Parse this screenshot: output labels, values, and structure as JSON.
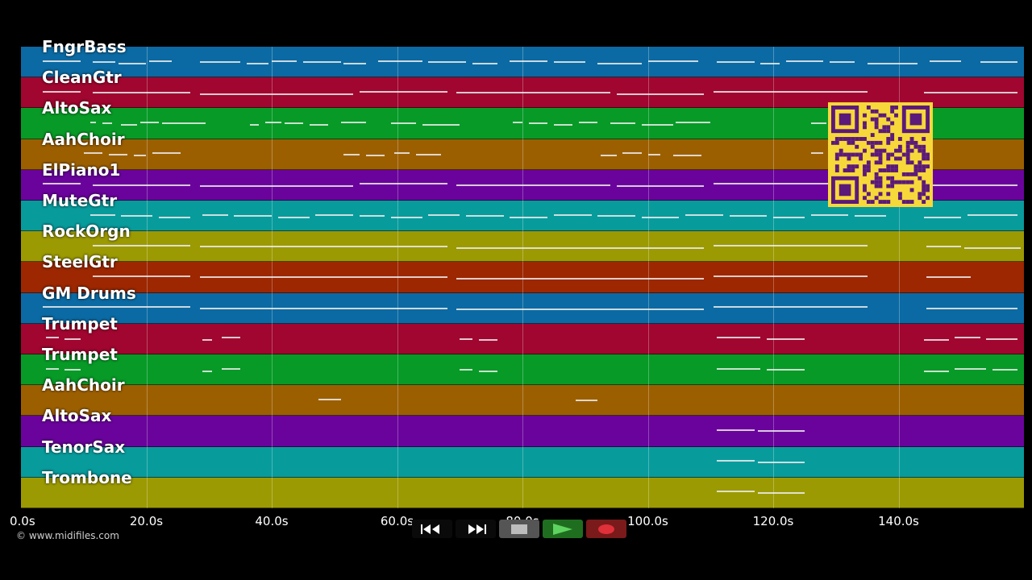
{
  "tracks": [
    {
      "name": "FngrBass",
      "color": "#0b6aa3"
    },
    {
      "name": "CleanGtr",
      "color": "#a0062f"
    },
    {
      "name": "AltoSax",
      "color": "#079a27"
    },
    {
      "name": "AahChoir",
      "color": "#9c5f00"
    },
    {
      "name": "ElPiano1",
      "color": "#6a039c"
    },
    {
      "name": "MuteGtr",
      "color": "#089b9c"
    },
    {
      "name": "RockOrgn",
      "color": "#9c9a02"
    },
    {
      "name": "SteelGtr",
      "color": "#9c2700"
    },
    {
      "name": "GM Drums",
      "color": "#0b6aa3"
    },
    {
      "name": "Trumpet",
      "color": "#a0062f"
    },
    {
      "name": "Trumpet",
      "color": "#079a27"
    },
    {
      "name": "AahChoir",
      "color": "#9c5f00"
    },
    {
      "name": "AltoSax",
      "color": "#6a039c"
    },
    {
      "name": "TenorSax",
      "color": "#089b9c"
    },
    {
      "name": "Trombone",
      "color": "#9c9a02"
    }
  ],
  "timeline": {
    "max_seconds": 160,
    "ticks": [
      {
        "value": 0,
        "label": "0.0s"
      },
      {
        "value": 20,
        "label": "20.0s"
      },
      {
        "value": 40,
        "label": "40.0s"
      },
      {
        "value": 60,
        "label": "60.0s"
      },
      {
        "value": 80,
        "label": "80.0s"
      },
      {
        "value": 100,
        "label": "100.0s"
      },
      {
        "value": 120,
        "label": "120.0s"
      },
      {
        "value": 140,
        "label": "140.0s"
      }
    ]
  },
  "note_regions": [
    [
      [
        3.5,
        9.5
      ],
      [
        11.5,
        15
      ],
      [
        15.5,
        20
      ],
      [
        20.5,
        24
      ],
      [
        28.5,
        35
      ],
      [
        36,
        39.5
      ],
      [
        40,
        44
      ],
      [
        45,
        51
      ],
      [
        51.5,
        55
      ],
      [
        57,
        64
      ],
      [
        65,
        71
      ],
      [
        72,
        76
      ],
      [
        78,
        84
      ],
      [
        85,
        90
      ],
      [
        92,
        99
      ],
      [
        100,
        108
      ],
      [
        111,
        117
      ],
      [
        118,
        121
      ],
      [
        122,
        128
      ],
      [
        129,
        133
      ],
      [
        135,
        143
      ],
      [
        145,
        150
      ],
      [
        153,
        159
      ]
    ],
    [
      [
        3.5,
        9.5
      ],
      [
        11.5,
        27
      ],
      [
        28.5,
        53
      ],
      [
        54,
        68
      ],
      [
        69.5,
        94
      ],
      [
        95,
        109
      ],
      [
        110.5,
        135
      ],
      [
        144,
        159
      ]
    ],
    [
      [
        11,
        12
      ],
      [
        13,
        14.5
      ],
      [
        16,
        18.5
      ],
      [
        19,
        22
      ],
      [
        22.5,
        29.5
      ],
      [
        36.5,
        38
      ],
      [
        39,
        41.5
      ],
      [
        42,
        45
      ],
      [
        46,
        49
      ],
      [
        51,
        55
      ],
      [
        59,
        63
      ],
      [
        64,
        70
      ],
      [
        78.5,
        80
      ],
      [
        81,
        84
      ],
      [
        85,
        88
      ],
      [
        89,
        92
      ],
      [
        94,
        98
      ],
      [
        99,
        104
      ],
      [
        104.5,
        110
      ],
      [
        126,
        128.5
      ]
    ],
    [
      [
        10,
        13
      ],
      [
        14,
        17
      ],
      [
        18,
        20
      ],
      [
        21,
        25.5
      ],
      [
        51.5,
        54
      ],
      [
        55,
        58
      ],
      [
        59.5,
        62
      ],
      [
        63,
        67
      ],
      [
        92.5,
        95
      ],
      [
        96,
        99
      ],
      [
        100,
        102
      ],
      [
        104,
        108.5
      ],
      [
        126,
        128
      ]
    ],
    [
      [
        3.5,
        9.5
      ],
      [
        11.5,
        27
      ],
      [
        28.5,
        53
      ],
      [
        54,
        68
      ],
      [
        69.5,
        94
      ],
      [
        95,
        109
      ],
      [
        110.5,
        135
      ],
      [
        144,
        159
      ]
    ],
    [
      [
        11,
        15
      ],
      [
        16,
        21
      ],
      [
        22,
        27
      ],
      [
        29,
        33
      ],
      [
        34,
        40
      ],
      [
        41,
        46
      ],
      [
        47,
        53
      ],
      [
        54,
        58
      ],
      [
        59,
        64
      ],
      [
        65,
        70
      ],
      [
        71,
        77
      ],
      [
        78,
        84
      ],
      [
        85,
        91
      ],
      [
        92,
        98
      ],
      [
        99,
        105
      ],
      [
        106,
        112
      ],
      [
        113,
        119
      ],
      [
        120,
        125
      ],
      [
        126,
        132
      ],
      [
        133,
        138
      ],
      [
        144,
        150
      ],
      [
        151,
        159
      ]
    ],
    [
      [
        11.5,
        27
      ],
      [
        28.5,
        68
      ],
      [
        69.5,
        109
      ],
      [
        110.5,
        135
      ],
      [
        144.5,
        150
      ],
      [
        150.5,
        159.5
      ]
    ],
    [
      [
        11.5,
        27
      ],
      [
        28.5,
        68
      ],
      [
        69.5,
        109
      ],
      [
        110.5,
        135
      ],
      [
        144.5,
        151.5
      ]
    ],
    [
      [
        3.5,
        27
      ],
      [
        28.5,
        68
      ],
      [
        69.5,
        109
      ],
      [
        110.5,
        135
      ],
      [
        144.5,
        159
      ]
    ],
    [
      [
        4,
        6
      ],
      [
        7,
        9.5
      ],
      [
        29,
        30.5
      ],
      [
        32,
        35
      ],
      [
        70,
        72
      ],
      [
        73,
        76
      ],
      [
        111,
        118
      ],
      [
        119,
        125
      ],
      [
        144,
        148
      ],
      [
        149,
        153
      ],
      [
        154,
        159
      ]
    ],
    [
      [
        4,
        6
      ],
      [
        7,
        9.5
      ],
      [
        29,
        30.5
      ],
      [
        32,
        35
      ],
      [
        70,
        72
      ],
      [
        73,
        76
      ],
      [
        111,
        118
      ],
      [
        119,
        125
      ],
      [
        144,
        148
      ],
      [
        149,
        154
      ],
      [
        155,
        159
      ]
    ],
    [
      [
        47.5,
        51
      ],
      [
        88.5,
        92
      ]
    ],
    [
      [
        111,
        117
      ],
      [
        117.5,
        125
      ]
    ],
    [
      [
        111,
        117
      ],
      [
        117.5,
        125
      ]
    ],
    [
      [
        111,
        117
      ],
      [
        117.5,
        125
      ]
    ]
  ],
  "copyright": "© www.midifiles.com",
  "transport": {
    "buttons": [
      {
        "name": "rewind-button",
        "icon": "rewind-icon"
      },
      {
        "name": "fast-forward-button",
        "icon": "fast-forward-icon"
      },
      {
        "name": "stop-button",
        "icon": "stop-icon"
      },
      {
        "name": "play-button",
        "icon": "play-icon"
      },
      {
        "name": "record-button",
        "icon": "record-icon"
      }
    ],
    "colors": {
      "dark": "#0a0a0a",
      "stop": "#555555",
      "play": "#1f6e1f",
      "record": "#7a1a1a"
    }
  },
  "qr_icon": "qr-code-icon"
}
